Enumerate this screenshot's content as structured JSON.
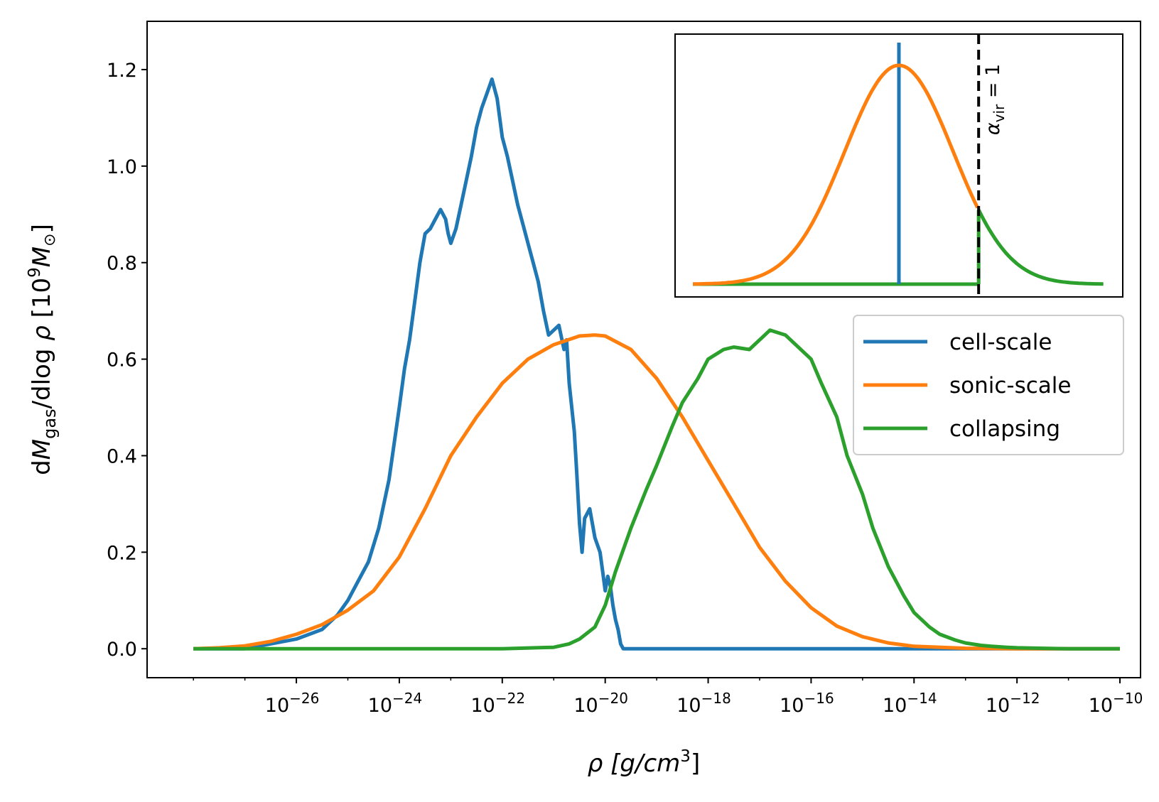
{
  "chart_data": {
    "type": "line",
    "xscale": "log",
    "xlabel": {
      "base": "ρ [g/cm",
      "sup": "3",
      "end": "]"
    },
    "ylabel": {
      "d": "d",
      "M": "M",
      "sub": "gas",
      "mid": "/dlog ",
      "rho": "ρ",
      "open": " [10",
      "sup": "9",
      "M2": "M",
      "sun": "⊙",
      "close": "]"
    },
    "xlim_log10": [
      -28.9,
      -9.6
    ],
    "ylim": [
      -0.06,
      1.3
    ],
    "xticks": [
      {
        "exp": -26,
        "base": "10",
        "sup": "−26"
      },
      {
        "exp": -24,
        "base": "10",
        "sup": "−24"
      },
      {
        "exp": -22,
        "base": "10",
        "sup": "−22"
      },
      {
        "exp": -20,
        "base": "10",
        "sup": "−20"
      },
      {
        "exp": -18,
        "base": "10",
        "sup": "−18"
      },
      {
        "exp": -16,
        "base": "10",
        "sup": "−16"
      },
      {
        "exp": -14,
        "base": "10",
        "sup": "−14"
      },
      {
        "exp": -12,
        "base": "10",
        "sup": "−12"
      },
      {
        "exp": -10,
        "base": "10",
        "sup": "−10"
      }
    ],
    "yticks": [
      {
        "value": 0.0,
        "label": "0.0"
      },
      {
        "value": 0.2,
        "label": "0.2"
      },
      {
        "value": 0.4,
        "label": "0.4"
      },
      {
        "value": 0.6,
        "label": "0.6"
      },
      {
        "value": 0.8,
        "label": "0.8"
      },
      {
        "value": 1.0,
        "label": "1.0"
      },
      {
        "value": 1.2,
        "label": "1.2"
      }
    ],
    "legend_position": "center-right",
    "series": [
      {
        "name": "cell-scale",
        "color": "#1f77b4",
        "log10_x": [
          -28.0,
          -27.0,
          -26.5,
          -26.0,
          -25.5,
          -25.2,
          -25.0,
          -24.8,
          -24.6,
          -24.4,
          -24.2,
          -24.0,
          -23.9,
          -23.8,
          -23.7,
          -23.6,
          -23.5,
          -23.4,
          -23.3,
          -23.2,
          -23.1,
          -23.05,
          -23.0,
          -22.9,
          -22.8,
          -22.7,
          -22.6,
          -22.5,
          -22.4,
          -22.3,
          -22.2,
          -22.1,
          -22.05,
          -22.0,
          -21.95,
          -21.9,
          -21.8,
          -21.7,
          -21.6,
          -21.5,
          -21.4,
          -21.3,
          -21.2,
          -21.1,
          -21.0,
          -20.9,
          -20.8,
          -20.75,
          -20.7,
          -20.6,
          -20.55,
          -20.5,
          -20.45,
          -20.4,
          -20.3,
          -20.2,
          -20.1,
          -20.05,
          -20.0,
          -19.95,
          -19.9,
          -19.85,
          -19.8,
          -19.75,
          -19.7,
          -19.65,
          -19.6,
          -19.5,
          -19.4,
          -19.2,
          -18.0,
          -16.0,
          -14.0,
          -12.0,
          -10.0
        ],
        "values": [
          0.0,
          0.0,
          0.01,
          0.02,
          0.04,
          0.07,
          0.1,
          0.14,
          0.18,
          0.25,
          0.35,
          0.5,
          0.58,
          0.64,
          0.72,
          0.8,
          0.86,
          0.87,
          0.89,
          0.91,
          0.89,
          0.86,
          0.84,
          0.87,
          0.92,
          0.97,
          1.02,
          1.08,
          1.12,
          1.15,
          1.18,
          1.14,
          1.1,
          1.06,
          1.04,
          1.02,
          0.97,
          0.92,
          0.88,
          0.84,
          0.8,
          0.76,
          0.7,
          0.65,
          0.66,
          0.67,
          0.62,
          0.64,
          0.55,
          0.45,
          0.36,
          0.26,
          0.2,
          0.27,
          0.29,
          0.23,
          0.2,
          0.16,
          0.12,
          0.15,
          0.13,
          0.09,
          0.06,
          0.04,
          0.01,
          0.0,
          0.0,
          0.0,
          0.0,
          0.0,
          0.0,
          0.0,
          0.0,
          0.0,
          0.0
        ]
      },
      {
        "name": "sonic-scale",
        "color": "#ff7f0e",
        "log10_x": [
          -28.0,
          -27.5,
          -27.0,
          -26.5,
          -26.0,
          -25.5,
          -25.0,
          -24.5,
          -24.0,
          -23.5,
          -23.0,
          -22.5,
          -22.0,
          -21.5,
          -21.0,
          -20.5,
          -20.2,
          -20.0,
          -19.5,
          -19.0,
          -18.5,
          -18.0,
          -17.5,
          -17.0,
          -16.5,
          -16.0,
          -15.5,
          -15.0,
          -14.5,
          -14.0,
          -13.0,
          -12.0,
          -11.0,
          -10.0
        ],
        "values": [
          0.0,
          0.002,
          0.006,
          0.015,
          0.03,
          0.05,
          0.08,
          0.12,
          0.19,
          0.29,
          0.4,
          0.48,
          0.55,
          0.6,
          0.63,
          0.648,
          0.65,
          0.648,
          0.62,
          0.56,
          0.48,
          0.39,
          0.3,
          0.21,
          0.14,
          0.085,
          0.047,
          0.025,
          0.012,
          0.005,
          0.001,
          0.0,
          0.0,
          0.0
        ]
      },
      {
        "name": "collapsing",
        "color": "#2ca02c",
        "log10_x": [
          -28.0,
          -26.0,
          -24.0,
          -22.0,
          -21.0,
          -20.7,
          -20.5,
          -20.2,
          -20.0,
          -19.8,
          -19.5,
          -19.2,
          -19.0,
          -18.7,
          -18.5,
          -18.2,
          -18.0,
          -17.7,
          -17.5,
          -17.2,
          -17.0,
          -16.8,
          -16.5,
          -16.3,
          -16.0,
          -15.8,
          -15.5,
          -15.3,
          -15.0,
          -14.8,
          -14.5,
          -14.2,
          -14.0,
          -13.7,
          -13.5,
          -13.2,
          -13.0,
          -12.7,
          -12.5,
          -12.2,
          -12.0,
          -11.5,
          -11.0,
          -10.5,
          -10.0
        ],
        "values": [
          0.0,
          0.0,
          0.0,
          0.0,
          0.003,
          0.01,
          0.02,
          0.045,
          0.09,
          0.16,
          0.25,
          0.33,
          0.38,
          0.46,
          0.51,
          0.56,
          0.6,
          0.62,
          0.625,
          0.62,
          0.64,
          0.66,
          0.65,
          0.63,
          0.6,
          0.55,
          0.48,
          0.4,
          0.32,
          0.25,
          0.17,
          0.11,
          0.075,
          0.045,
          0.03,
          0.018,
          0.012,
          0.007,
          0.005,
          0.003,
          0.002,
          0.001,
          0.0,
          0.0,
          0.0
        ]
      }
    ],
    "inset": {
      "annotation": {
        "alpha": "α",
        "sub": "vir",
        "rest": " = 1"
      },
      "description": "schematic",
      "sonic_gaussian": {
        "center": 0.0,
        "sigma": 1.0,
        "peak": 1.0
      },
      "cell_scale_spike_at": 0.0,
      "virial_threshold_at": 1.47
    }
  }
}
